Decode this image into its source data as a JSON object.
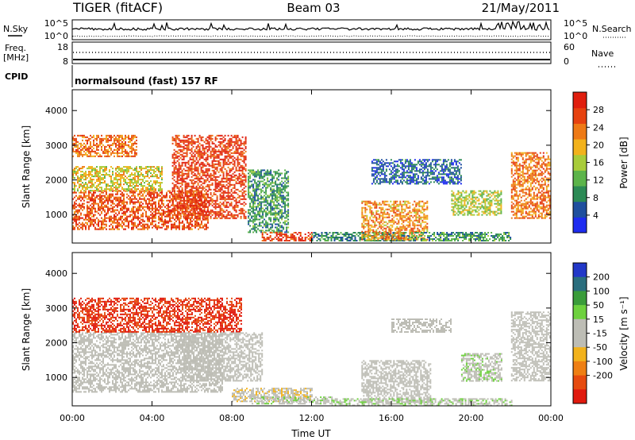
{
  "header": {
    "radar": "TIGER (fitACF)",
    "beam": "Beam 03",
    "date": "21/May/2011"
  },
  "sky_panel": {
    "left_label": "N.Sky",
    "right_label": "N.Search",
    "left_ticks": [
      "10^5",
      "10^0"
    ],
    "right_ticks": [
      "10^5",
      "10^0"
    ]
  },
  "freq_panel": {
    "left_label_line1": "Freq.",
    "left_label_line2": "[MHz]",
    "right_label": "Nave",
    "left_ticks": [
      "18",
      "8"
    ],
    "right_ticks": [
      "60",
      "0"
    ]
  },
  "cpid_panel": {
    "label": "CPID",
    "text": "normalsound (fast) 157 RF"
  },
  "colors": {
    "power_scale": [
      "#1e2cf0",
      "#1f4f9e",
      "#2c8a55",
      "#5cb44a",
      "#a8cc3a",
      "#f2b21c",
      "#ee7a16",
      "#e6420f",
      "#e01e0e"
    ],
    "velocity_scale": [
      "#2238c8",
      "#2a6e7e",
      "#3a9c3a",
      "#6ed13e",
      "#bdbdb5",
      "#bdbdb5",
      "#f2b21c",
      "#ee7f13",
      "#e64b0f",
      "#e01a0e"
    ]
  },
  "chart_data": [
    {
      "type": "heatmap",
      "name": "power",
      "xlabel": "",
      "ylabel": "Slant Range [km]",
      "x_tick_labels": [
        "00:00",
        "04:00",
        "08:00",
        "12:00",
        "16:00",
        "20:00",
        "00:00"
      ],
      "xlim_hours": [
        0,
        24
      ],
      "y_tick_labels": [
        "1000",
        "2000",
        "3000",
        "4000"
      ],
      "ylim": [
        180,
        4600
      ],
      "colorbar": {
        "label": "Power [dB]",
        "ticks": [
          "4",
          "8",
          "12",
          "16",
          "20",
          "24",
          "28"
        ],
        "range": [
          0,
          32
        ]
      },
      "regions": [
        {
          "t": [
            0.0,
            6.8
          ],
          "r": [
            600,
            1700
          ],
          "value": 26
        },
        {
          "t": [
            0.0,
            4.5
          ],
          "r": [
            1700,
            2400
          ],
          "value": 18
        },
        {
          "t": [
            0.0,
            3.2
          ],
          "r": [
            2700,
            3300
          ],
          "value": 24
        },
        {
          "t": [
            5.0,
            8.7
          ],
          "r": [
            900,
            3300
          ],
          "value": 28
        },
        {
          "t": [
            8.8,
            10.8
          ],
          "r": [
            500,
            2300
          ],
          "value": 10
        },
        {
          "t": [
            9.5,
            12.0
          ],
          "r": [
            250,
            500
          ],
          "value": 28
        },
        {
          "t": [
            12.0,
            17.0
          ],
          "r": [
            250,
            500
          ],
          "value": 9
        },
        {
          "t": [
            14.5,
            17.8
          ],
          "r": [
            300,
            1400
          ],
          "value": 22
        },
        {
          "t": [
            17.0,
            22.0
          ],
          "r": [
            250,
            500
          ],
          "value": 10
        },
        {
          "t": [
            15.0,
            19.5
          ],
          "r": [
            1900,
            2600
          ],
          "value": 6
        },
        {
          "t": [
            19.0,
            21.5
          ],
          "r": [
            1000,
            1700
          ],
          "value": 16
        },
        {
          "t": [
            22.0,
            24.0
          ],
          "r": [
            900,
            2800
          ],
          "value": 24
        }
      ]
    },
    {
      "type": "heatmap",
      "name": "velocity",
      "xlabel": "Time UT",
      "ylabel": "Slant Range [km]",
      "x_tick_labels": [
        "00:00",
        "04:00",
        "08:00",
        "12:00",
        "16:00",
        "20:00",
        "00:00"
      ],
      "xlim_hours": [
        0,
        24
      ],
      "y_tick_labels": [
        "1000",
        "2000",
        "3000",
        "4000"
      ],
      "ylim": [
        180,
        4600
      ],
      "colorbar": {
        "label": "Velocity [m s⁻¹]",
        "ticks": [
          "200",
          "100",
          "50",
          "15",
          "-15",
          "-50",
          "-100",
          "-200"
        ],
        "range": [
          -250,
          250
        ]
      },
      "regions": [
        {
          "t": [
            0.0,
            7.5
          ],
          "r": [
            600,
            2300
          ],
          "value": 0
        },
        {
          "t": [
            0.0,
            8.5
          ],
          "r": [
            2300,
            3300
          ],
          "value": -200
        },
        {
          "t": [
            5.5,
            9.5
          ],
          "r": [
            900,
            2300
          ],
          "value": 0
        },
        {
          "t": [
            8.0,
            12.0
          ],
          "r": [
            300,
            700
          ],
          "value": -40
        },
        {
          "t": [
            9.0,
            13.0
          ],
          "r": [
            250,
            450
          ],
          "value": 40
        },
        {
          "t": [
            14.5,
            18.0
          ],
          "r": [
            300,
            1500
          ],
          "value": 0
        },
        {
          "t": [
            13.0,
            22.0
          ],
          "r": [
            200,
            400
          ],
          "value": 40
        },
        {
          "t": [
            16.0,
            19.0
          ],
          "r": [
            2300,
            2700
          ],
          "value": 0
        },
        {
          "t": [
            19.5,
            21.5
          ],
          "r": [
            900,
            1700
          ],
          "value": 40
        },
        {
          "t": [
            22.0,
            24.0
          ],
          "r": [
            900,
            2900
          ],
          "value": 0
        }
      ]
    }
  ]
}
